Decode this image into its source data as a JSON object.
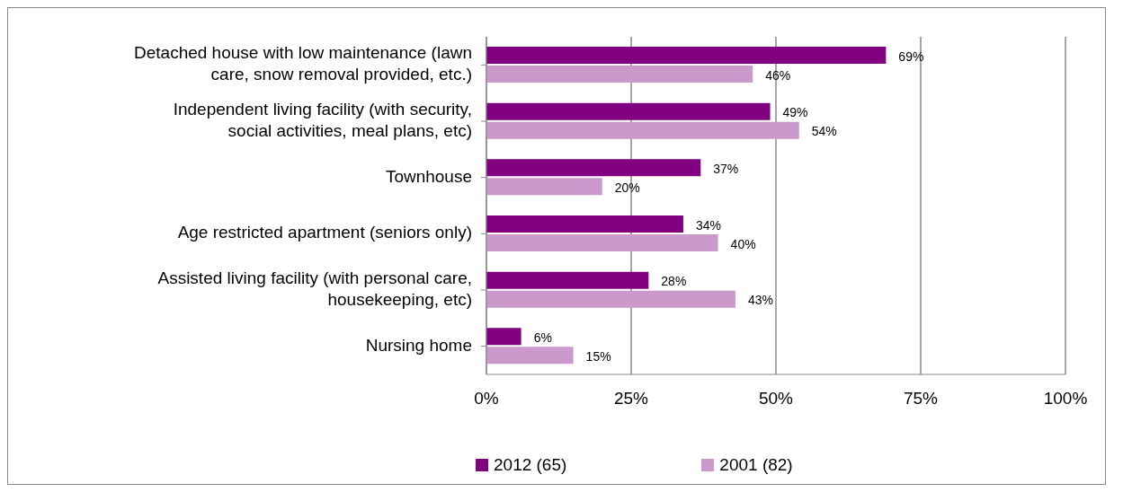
{
  "chart_data": {
    "type": "bar",
    "orientation": "horizontal",
    "categories": [
      "Detached house with low maintenance (lawn care, snow removal provided, etc.)",
      "Independent living facility (with security, social activities, meal plans, etc)",
      "Townhouse",
      "Age restricted apartment  (seniors only)",
      "Assisted living facility (with personal care, housekeeping, etc)",
      "Nursing home"
    ],
    "series": [
      {
        "name": "2012  (65)",
        "color": "#800080",
        "values": [
          69,
          49,
          37,
          34,
          28,
          6
        ],
        "value_labels": [
          "69%",
          "49%",
          "37%",
          "34%",
          "28%",
          "6%"
        ]
      },
      {
        "name": "2001  (82)",
        "color": "#cc99cc",
        "values": [
          46,
          54,
          20,
          40,
          43,
          15
        ],
        "value_labels": [
          "46%",
          "54%",
          "20%",
          "40%",
          "43%",
          "15%"
        ]
      }
    ],
    "xlim": [
      0,
      100
    ],
    "xticks": [
      {
        "value": 0,
        "label": "0%"
      },
      {
        "value": 25,
        "label": "25%"
      },
      {
        "value": 50,
        "label": "50%"
      },
      {
        "value": 75,
        "label": "75%"
      },
      {
        "value": 100,
        "label": "100%"
      }
    ],
    "grid": "x",
    "legend": "bottom"
  }
}
